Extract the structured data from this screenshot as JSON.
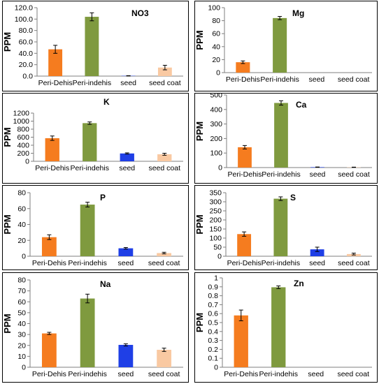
{
  "chart_data": [
    {
      "type": "bar",
      "title": "NO3",
      "ylabel": "PPM",
      "categories": [
        "Peri-Dehis",
        "Peri-indehis",
        "seed",
        "seed coat"
      ],
      "values": [
        47,
        104,
        0.5,
        15
      ],
      "errors": [
        7,
        7,
        0.3,
        4
      ],
      "yticks": [
        "0.0",
        "20.0",
        "40.0",
        "60.0",
        "80.0",
        "100.0",
        "120.0"
      ],
      "ylim": [
        0,
        120
      ],
      "grid": false,
      "colors": [
        "#f57c1f",
        "#7f9a3f",
        "#1f3fe6",
        "#f9c9a2"
      ]
    },
    {
      "type": "bar",
      "title": "Mg",
      "ylabel": "PPM",
      "categories": [
        "Peri-Dehis",
        "Peri-indehis",
        "seed",
        "seed coat"
      ],
      "values": [
        16,
        84,
        0,
        0
      ],
      "errors": [
        2,
        2.5,
        0,
        0
      ],
      "yticks": [
        "0",
        "20",
        "40",
        "60",
        "80",
        "100"
      ],
      "ylim": [
        0,
        100
      ],
      "grid": false,
      "colors": [
        "#f57c1f",
        "#7f9a3f",
        "#1f3fe6",
        "#f9c9a2"
      ]
    },
    {
      "type": "bar",
      "title": "K",
      "ylabel": "PPM",
      "categories": [
        "Peri-Dehis",
        "Peri-indehis",
        "seed",
        "seed coat"
      ],
      "values": [
        575,
        950,
        195,
        175
      ],
      "errors": [
        55,
        30,
        15,
        25
      ],
      "yticks": [
        "0",
        "200",
        "400",
        "600",
        "800",
        "1000",
        "1200"
      ],
      "ylim": [
        0,
        1200
      ],
      "grid": false,
      "colors": [
        "#f57c1f",
        "#7f9a3f",
        "#1f3fe6",
        "#f9c9a2"
      ]
    },
    {
      "type": "bar",
      "title": "Ca",
      "ylabel": "PPM",
      "categories": [
        "Peri-Dehis",
        "Peri-indehis",
        "seed",
        "seed coat"
      ],
      "values": [
        140,
        445,
        3,
        2
      ],
      "errors": [
        12,
        15,
        1,
        1
      ],
      "yticks": [
        "0",
        "100",
        "200",
        "300",
        "400",
        "500"
      ],
      "ylim": [
        0,
        500
      ],
      "grid": false,
      "colors": [
        "#f57c1f",
        "#7f9a3f",
        "#1f3fe6",
        "#f9c9a2"
      ]
    },
    {
      "type": "bar",
      "title": "P",
      "ylabel": "PPM",
      "categories": [
        "Peri-Dehis",
        "Peri-indehis",
        "seed",
        "seed coat"
      ],
      "values": [
        24,
        65,
        10,
        4
      ],
      "errors": [
        3,
        3,
        1,
        1
      ],
      "yticks": [
        "0",
        "20",
        "40",
        "60",
        "80"
      ],
      "ylim": [
        0,
        80
      ],
      "grid": false,
      "colors": [
        "#f57c1f",
        "#7f9a3f",
        "#1f3fe6",
        "#f9c9a2"
      ]
    },
    {
      "type": "bar",
      "title": "S",
      "ylabel": "PPM",
      "categories": [
        "Peri-Dehis",
        "Peri-indehis",
        "seed",
        "seed coat"
      ],
      "values": [
        122,
        317,
        38,
        12
      ],
      "errors": [
        12,
        10,
        12,
        5
      ],
      "yticks": [
        "0",
        "50",
        "100",
        "150",
        "200",
        "250",
        "300",
        "350"
      ],
      "ylim": [
        0,
        350
      ],
      "grid": false,
      "colors": [
        "#f57c1f",
        "#7f9a3f",
        "#1f3fe6",
        "#f9c9a2"
      ]
    },
    {
      "type": "bar",
      "title": "Na",
      "ylabel": "PPM",
      "categories": [
        "Peri-Dehis",
        "Peri-indehis",
        "seed",
        "seed coat"
      ],
      "values": [
        31,
        63,
        20.5,
        16
      ],
      "errors": [
        1,
        4,
        1,
        1.5
      ],
      "yticks": [
        "0",
        "10",
        "20",
        "30",
        "40",
        "50",
        "60",
        "70",
        "80"
      ],
      "ylim": [
        0,
        80
      ],
      "grid": false,
      "colors": [
        "#f57c1f",
        "#7f9a3f",
        "#1f3fe6",
        "#f9c9a2"
      ]
    },
    {
      "type": "bar",
      "title": "Zn",
      "ylabel": "PPM",
      "categories": [
        "Peri-Dehis",
        "Peri-indehis",
        "seed",
        "seed coat"
      ],
      "values": [
        0.58,
        0.895,
        0,
        0
      ],
      "errors": [
        0.06,
        0.015,
        0,
        0
      ],
      "yticks": [
        "0",
        "0.1",
        "0.2",
        "0.3",
        "0.4",
        "0.5",
        "0.6",
        "0.7",
        "0.8",
        "0.9",
        "1"
      ],
      "ylim": [
        0,
        1
      ],
      "grid": false,
      "colors": [
        "#f57c1f",
        "#7f9a3f",
        "#1f3fe6",
        "#f9c9a2"
      ]
    }
  ]
}
